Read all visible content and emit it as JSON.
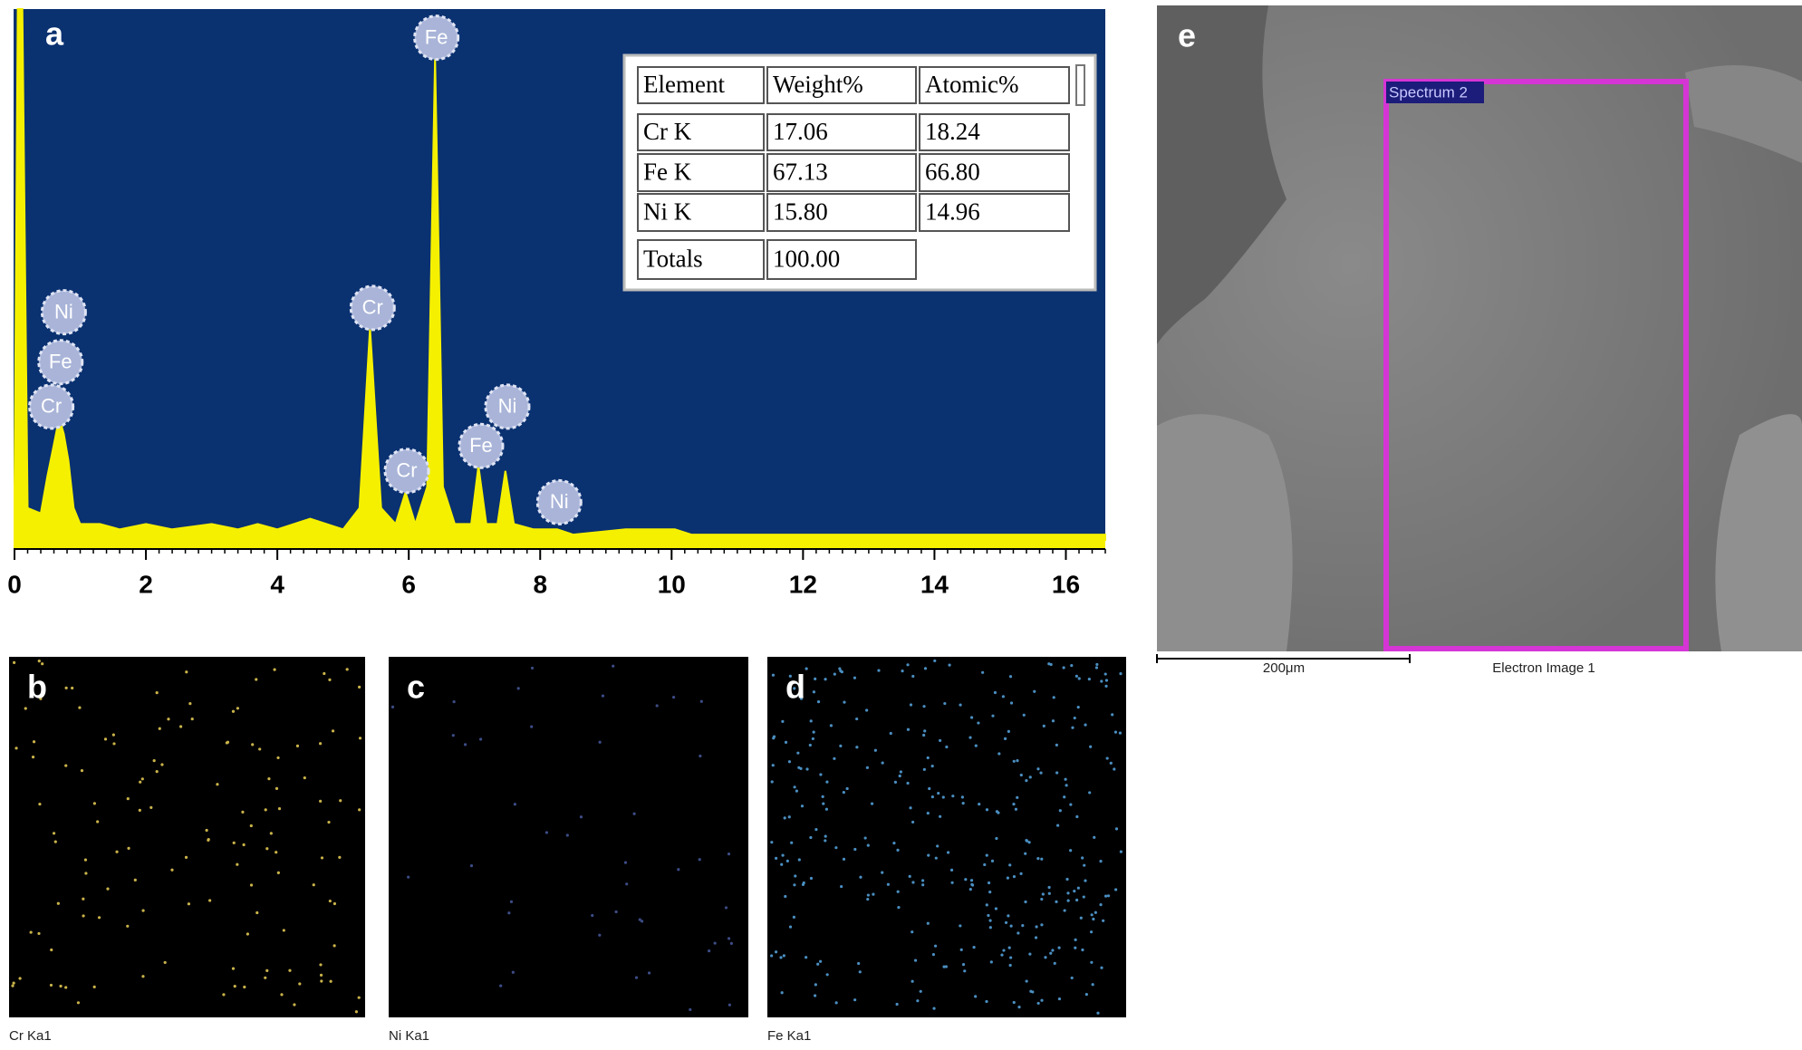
{
  "chart_data": {
    "type": "line",
    "panel_label": "a",
    "x": [
      0,
      0.05,
      0.12,
      0.2,
      0.4,
      0.5,
      0.6,
      0.68,
      0.75,
      0.82,
      0.9,
      1.0,
      1.3,
      1.6,
      2.0,
      2.4,
      3.0,
      3.4,
      3.7,
      4.0,
      4.5,
      5.0,
      5.25,
      5.41,
      5.58,
      5.8,
      5.95,
      6.1,
      6.28,
      6.4,
      6.52,
      6.7,
      6.95,
      7.06,
      7.18,
      7.35,
      7.47,
      7.6,
      7.9,
      8.26,
      8.5,
      9.3,
      10.05,
      10.3,
      11.0,
      12.0,
      13.0,
      14.0,
      15.0,
      16.0,
      16.6
    ],
    "values": [
      10,
      100,
      100,
      6,
      5,
      12,
      18,
      23,
      20,
      15,
      6,
      3,
      3,
      2,
      3,
      2,
      3,
      2,
      3,
      2,
      4,
      2,
      6,
      40,
      6,
      3,
      9,
      3,
      10,
      91,
      10,
      3,
      3,
      14,
      3,
      3,
      13,
      3,
      2,
      2,
      1,
      2,
      2,
      1,
      1,
      1,
      1,
      1,
      1,
      1,
      1
    ],
    "color": "#f5f000",
    "background": "#0a3170",
    "xlim": [
      0,
      16.6
    ],
    "ylim": [
      0,
      100
    ],
    "xticks": [
      0,
      2,
      4,
      6,
      8,
      10,
      12,
      14,
      16
    ],
    "annotations": [
      {
        "text": "Fe",
        "x": 6.42,
        "y": 94.6
      },
      {
        "text": "Ni",
        "x": 0.75,
        "y": 42.9
      },
      {
        "text": "Fe",
        "x": 0.7,
        "y": 33.5
      },
      {
        "text": "Cr",
        "x": 0.56,
        "y": 25.1
      },
      {
        "text": "Cr",
        "x": 5.45,
        "y": 43.7
      },
      {
        "text": "Cr",
        "x": 5.97,
        "y": 13.0
      },
      {
        "text": "Fe",
        "x": 7.1,
        "y": 17.7
      },
      {
        "text": "Ni",
        "x": 7.5,
        "y": 25.1
      },
      {
        "text": "Ni",
        "x": 8.29,
        "y": 7.1
      }
    ]
  },
  "table": {
    "header": [
      "Element",
      "Weight%",
      "Atomic%"
    ],
    "rows": [
      [
        "Cr K",
        "17.06",
        "18.24"
      ],
      [
        "Fe K",
        "67.13",
        "66.80"
      ],
      [
        "Ni K",
        "15.80",
        "14.96"
      ],
      [
        "Totals",
        "100.00"
      ]
    ]
  },
  "maps": [
    {
      "label": "b",
      "caption": "Cr Ka1",
      "color": "#c9b34a"
    },
    {
      "label": "c",
      "caption": "Ni Ka1",
      "color": "#3c4c86"
    },
    {
      "label": "d",
      "caption": "Fe Ka1",
      "color": "#4a8ec0"
    }
  ],
  "image": {
    "label": "e",
    "region": "Spectrum 2",
    "scale": "200μm",
    "caption": "Electron Image 1"
  }
}
